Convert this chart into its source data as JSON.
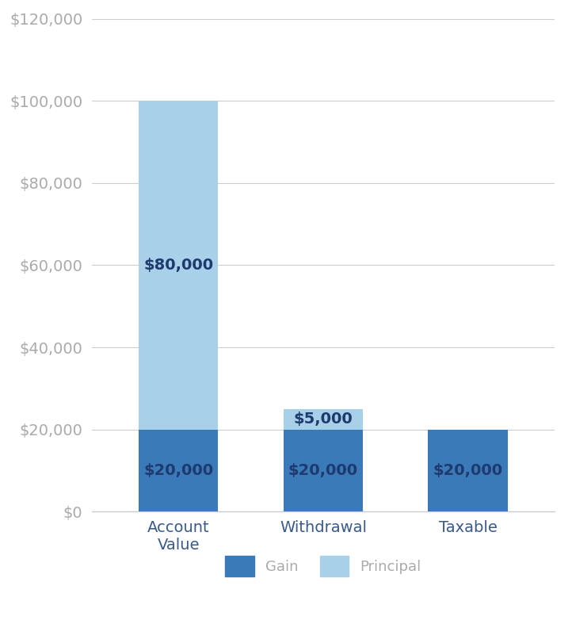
{
  "categories": [
    "Account\nValue",
    "Withdrawal",
    "Taxable"
  ],
  "gain_values": [
    20000,
    20000,
    20000
  ],
  "principal_values": [
    80000,
    5000,
    0
  ],
  "gain_color": "#3A7AB8",
  "principal_color": "#A8D0E8",
  "label_color": "#1E3A6E",
  "axis_label_color": "#AAAAAA",
  "grid_color": "#CCCCCC",
  "background_color": "#FFFFFF",
  "ylim": [
    0,
    120000
  ],
  "yticks": [
    0,
    20000,
    40000,
    60000,
    80000,
    100000,
    120000
  ],
  "bar_width": 0.55,
  "gain_label": "Gain",
  "principal_label": "Principal",
  "annotations": {
    "account_value_gain": "$20,000",
    "account_value_principal": "$80,000",
    "withdrawal_gain": "$20,000",
    "withdrawal_principal": "$5,000",
    "taxable_gain": "$20,000"
  },
  "font_size_ticks": 14,
  "font_size_labels": 14,
  "font_size_annotations": 14,
  "font_size_legend": 13
}
